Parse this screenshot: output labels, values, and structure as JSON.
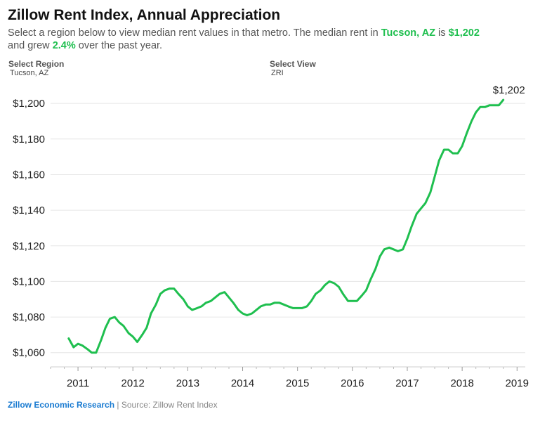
{
  "header": {
    "title": "Zillow Rent Index, Annual Appreciation",
    "sub_text_1": "Select a region below to view median rent values in that metro. The median rent in ",
    "region": "Tucson, AZ",
    "sub_text_2": " is ",
    "median_rent": "$1,202",
    "sub_text_3": "and grew ",
    "growth": "2.4%",
    "sub_text_4": " over the past year."
  },
  "controls": {
    "region_label": "Select Region",
    "region_value": "Tucson, AZ",
    "view_label": "Select View",
    "view_value": "ZRI"
  },
  "footer": {
    "brand": "Zillow Economic Research",
    "separator": " | ",
    "source": "Source: Zillow Rent Index"
  },
  "colors": {
    "line": "#1fbf4f",
    "accent": "#1fbf4f",
    "brand": "#1a7bd1"
  },
  "chart_data": {
    "type": "line",
    "title": "Zillow Rent Index, Annual Appreciation",
    "xlabel": "",
    "ylabel": "",
    "ylim": [
      1052,
      1204
    ],
    "xlim": [
      2010.5,
      2019.15
    ],
    "grid": true,
    "y_ticks": [
      1060,
      1080,
      1100,
      1120,
      1140,
      1160,
      1180,
      1200
    ],
    "y_tick_labels": [
      "$1,060",
      "$1,080",
      "$1,100",
      "$1,120",
      "$1,140",
      "$1,160",
      "$1,180",
      "$1,200"
    ],
    "x_ticks": [
      2011,
      2012,
      2013,
      2014,
      2015,
      2016,
      2017,
      2018,
      2019
    ],
    "x_tick_labels": [
      "2011",
      "2012",
      "2013",
      "2014",
      "2015",
      "2016",
      "2017",
      "2018",
      "2019"
    ],
    "end_label": "$1,202",
    "series": [
      {
        "x": [
          2010.83,
          2010.92,
          2011.0,
          2011.08,
          2011.17,
          2011.25,
          2011.33,
          2011.42,
          2011.5,
          2011.58,
          2011.67,
          2011.75,
          2011.83,
          2011.92,
          2012.0,
          2012.08,
          2012.17,
          2012.25,
          2012.33,
          2012.42,
          2012.5,
          2012.58,
          2012.67,
          2012.75,
          2012.83,
          2012.92,
          2013.0,
          2013.08,
          2013.17,
          2013.25,
          2013.33,
          2013.42,
          2013.5,
          2013.58,
          2013.67,
          2013.75,
          2013.83,
          2013.92,
          2014.0,
          2014.08,
          2014.17,
          2014.25,
          2014.33,
          2014.42,
          2014.5,
          2014.58,
          2014.67,
          2014.75,
          2014.83,
          2014.92,
          2015.0,
          2015.08,
          2015.17,
          2015.25,
          2015.33,
          2015.42,
          2015.5,
          2015.58,
          2015.67,
          2015.75,
          2015.83,
          2015.92,
          2016.0,
          2016.08,
          2016.17,
          2016.25,
          2016.33,
          2016.42,
          2016.5,
          2016.58,
          2016.67,
          2016.75,
          2016.83,
          2016.92,
          2017.0,
          2017.08,
          2017.17,
          2017.25,
          2017.33,
          2017.42,
          2017.5,
          2017.58,
          2017.67,
          2017.75,
          2017.83,
          2017.92,
          2018.0,
          2018.08,
          2018.17,
          2018.25,
          2018.33,
          2018.42,
          2018.5,
          2018.58,
          2018.67,
          2018.75
        ],
        "values": [
          1068,
          1063,
          1065,
          1064,
          1062,
          1060,
          1060,
          1067,
          1074,
          1079,
          1080,
          1077,
          1075,
          1071,
          1069,
          1066,
          1070,
          1074,
          1082,
          1087,
          1093,
          1095,
          1096,
          1096,
          1093,
          1090,
          1086,
          1084,
          1085,
          1086,
          1088,
          1089,
          1091,
          1093,
          1094,
          1091,
          1088,
          1084,
          1082,
          1081,
          1082,
          1084,
          1086,
          1087,
          1087,
          1088,
          1088,
          1087,
          1086,
          1085,
          1085,
          1085,
          1086,
          1089,
          1093,
          1095,
          1098,
          1100,
          1099,
          1097,
          1093,
          1089,
          1089,
          1089,
          1092,
          1095,
          1101,
          1107,
          1114,
          1118,
          1119,
          1118,
          1117,
          1118,
          1124,
          1131,
          1138,
          1141,
          1144,
          1150,
          1159,
          1168,
          1174,
          1174,
          1172,
          1172,
          1176,
          1183,
          1190,
          1195,
          1198,
          1198,
          1199,
          1199,
          1199,
          1202
        ]
      }
    ]
  }
}
